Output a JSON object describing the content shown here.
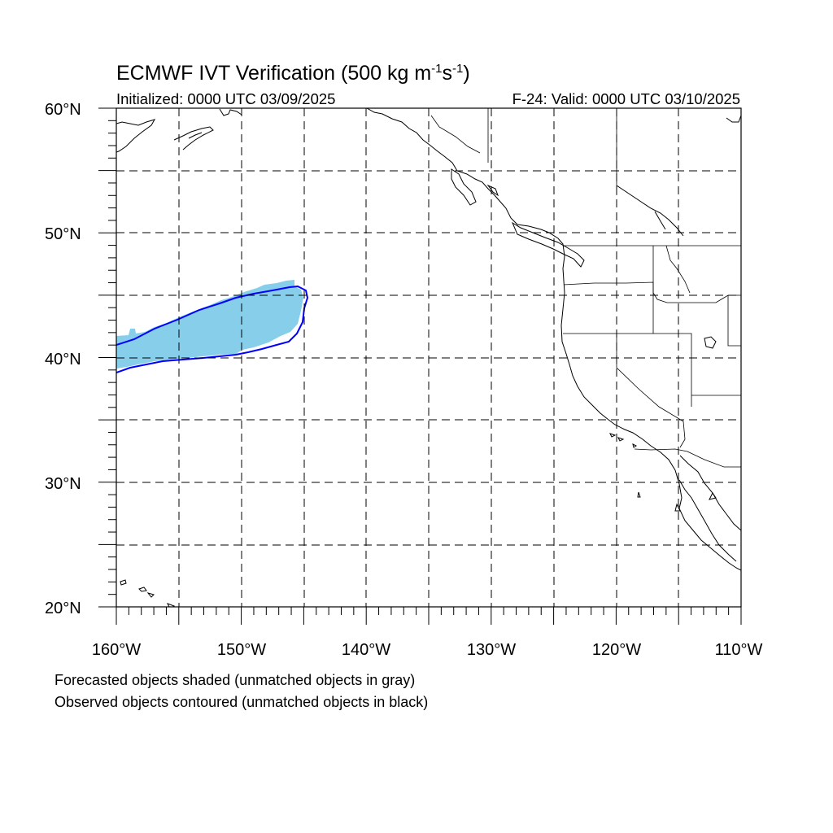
{
  "header": {
    "title": "ECMWF IVT Verification (500 kg m-1s-1)",
    "title_main": "ECMWF IVT Verification (500 kg m",
    "title_sup1": "-1",
    "title_s": "s",
    "title_sup2": "-1",
    "title_end": ")",
    "initialized": "Initialized: 0000 UTC 03/09/2025",
    "valid": "F-24: Valid: 0000 UTC 03/10/2025"
  },
  "map": {
    "lon_range": [
      -160,
      -110
    ],
    "lat_range": [
      20,
      60
    ],
    "lat_labels": [
      "60°N",
      "50°N",
      "40°N",
      "30°N",
      "20°N"
    ],
    "lon_labels": [
      "160°W",
      "150°W",
      "140°W",
      "130°W",
      "120°W",
      "110°W"
    ],
    "grid": true,
    "colors": {
      "forecast_fill": "#87ceeb",
      "observed_contour": "#0000ff",
      "coastline": "#000000"
    }
  },
  "objects": {
    "forecast_object": {
      "label": "Forecasted objects shaded",
      "approx_extent_lon": [
        -160,
        -145
      ],
      "approx_extent_lat": [
        40.5,
        46.2
      ]
    },
    "observed_object": {
      "label": "Observed objects contoured",
      "approx_extent_lon": [
        -160,
        -144.9
      ],
      "approx_extent_lat": [
        38.9,
        45.8
      ]
    }
  },
  "footer": {
    "line1": "Forecasted objects shaded (unmatched objects in gray)",
    "line2": "Observed objects contoured (unmatched objects in black)"
  }
}
